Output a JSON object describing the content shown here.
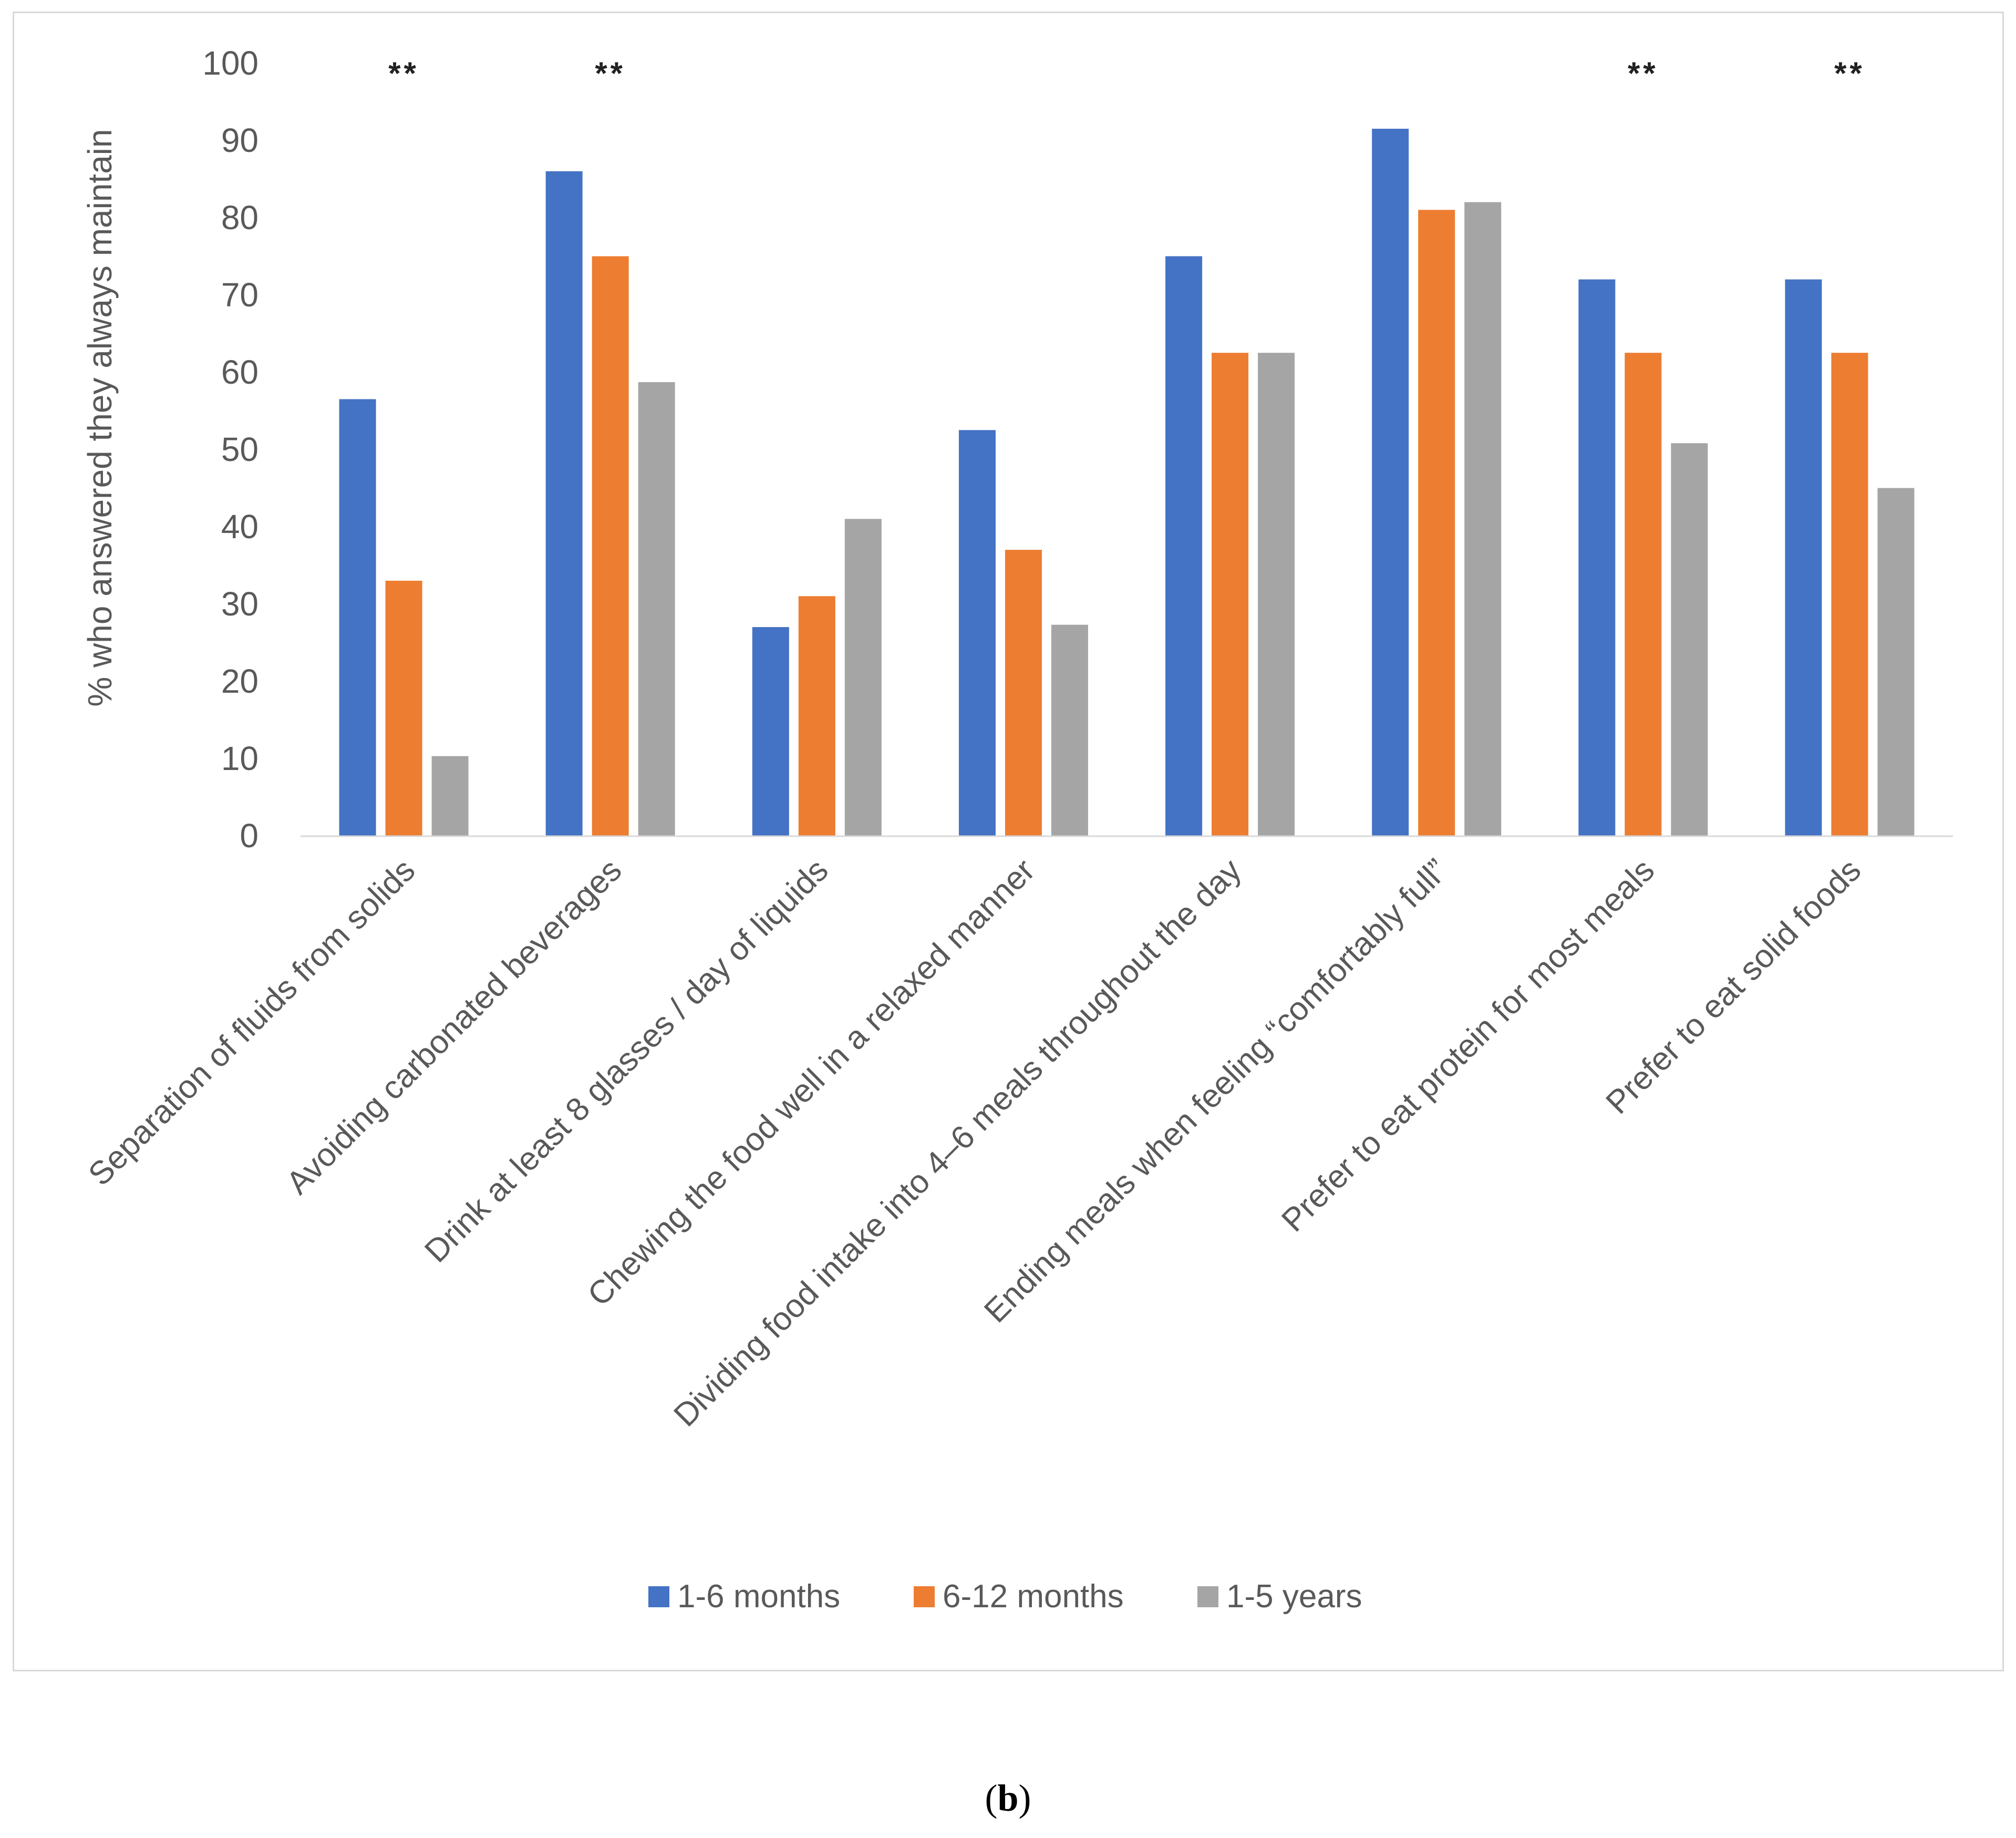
{
  "chart_data": {
    "type": "bar",
    "title": "",
    "xlabel": "",
    "ylabel": "% who answered they always maintain",
    "ylim": [
      0,
      100
    ],
    "yticks": [
      0,
      10,
      20,
      30,
      40,
      50,
      60,
      70,
      80,
      90,
      100
    ],
    "grid": false,
    "legend_position": "bottom",
    "categories": [
      "Separation of fluids from solids",
      "Avoiding carbonated beverages",
      "Drink at least 8 glasses / day of liquids",
      "Chewing the food well in a relaxed manner",
      "Dividing food intake into 4–6 meals throughout the day",
      "Ending meals when feeling “comfortably full”",
      "Prefer to eat protein for most meals",
      "Prefer to eat solid foods"
    ],
    "series": [
      {
        "name": "1-6 months",
        "color": "#4472c4",
        "values": [
          56.5,
          86,
          27,
          52.5,
          75,
          91.5,
          72,
          72
        ]
      },
      {
        "name": "6-12 months",
        "color": "#ed7d31",
        "values": [
          33,
          75,
          31,
          37,
          62.5,
          81,
          62.5,
          62.5
        ]
      },
      {
        "name": "1-5 years",
        "color": "#a5a5a5",
        "values": [
          10.3,
          58.7,
          41,
          27.3,
          62.5,
          82,
          50.8,
          45
        ]
      }
    ],
    "significance": [
      "**",
      "**",
      "",
      "",
      "",
      "",
      "**",
      "**"
    ]
  },
  "caption": {
    "open": "(",
    "letter": "b",
    "close": ")"
  }
}
